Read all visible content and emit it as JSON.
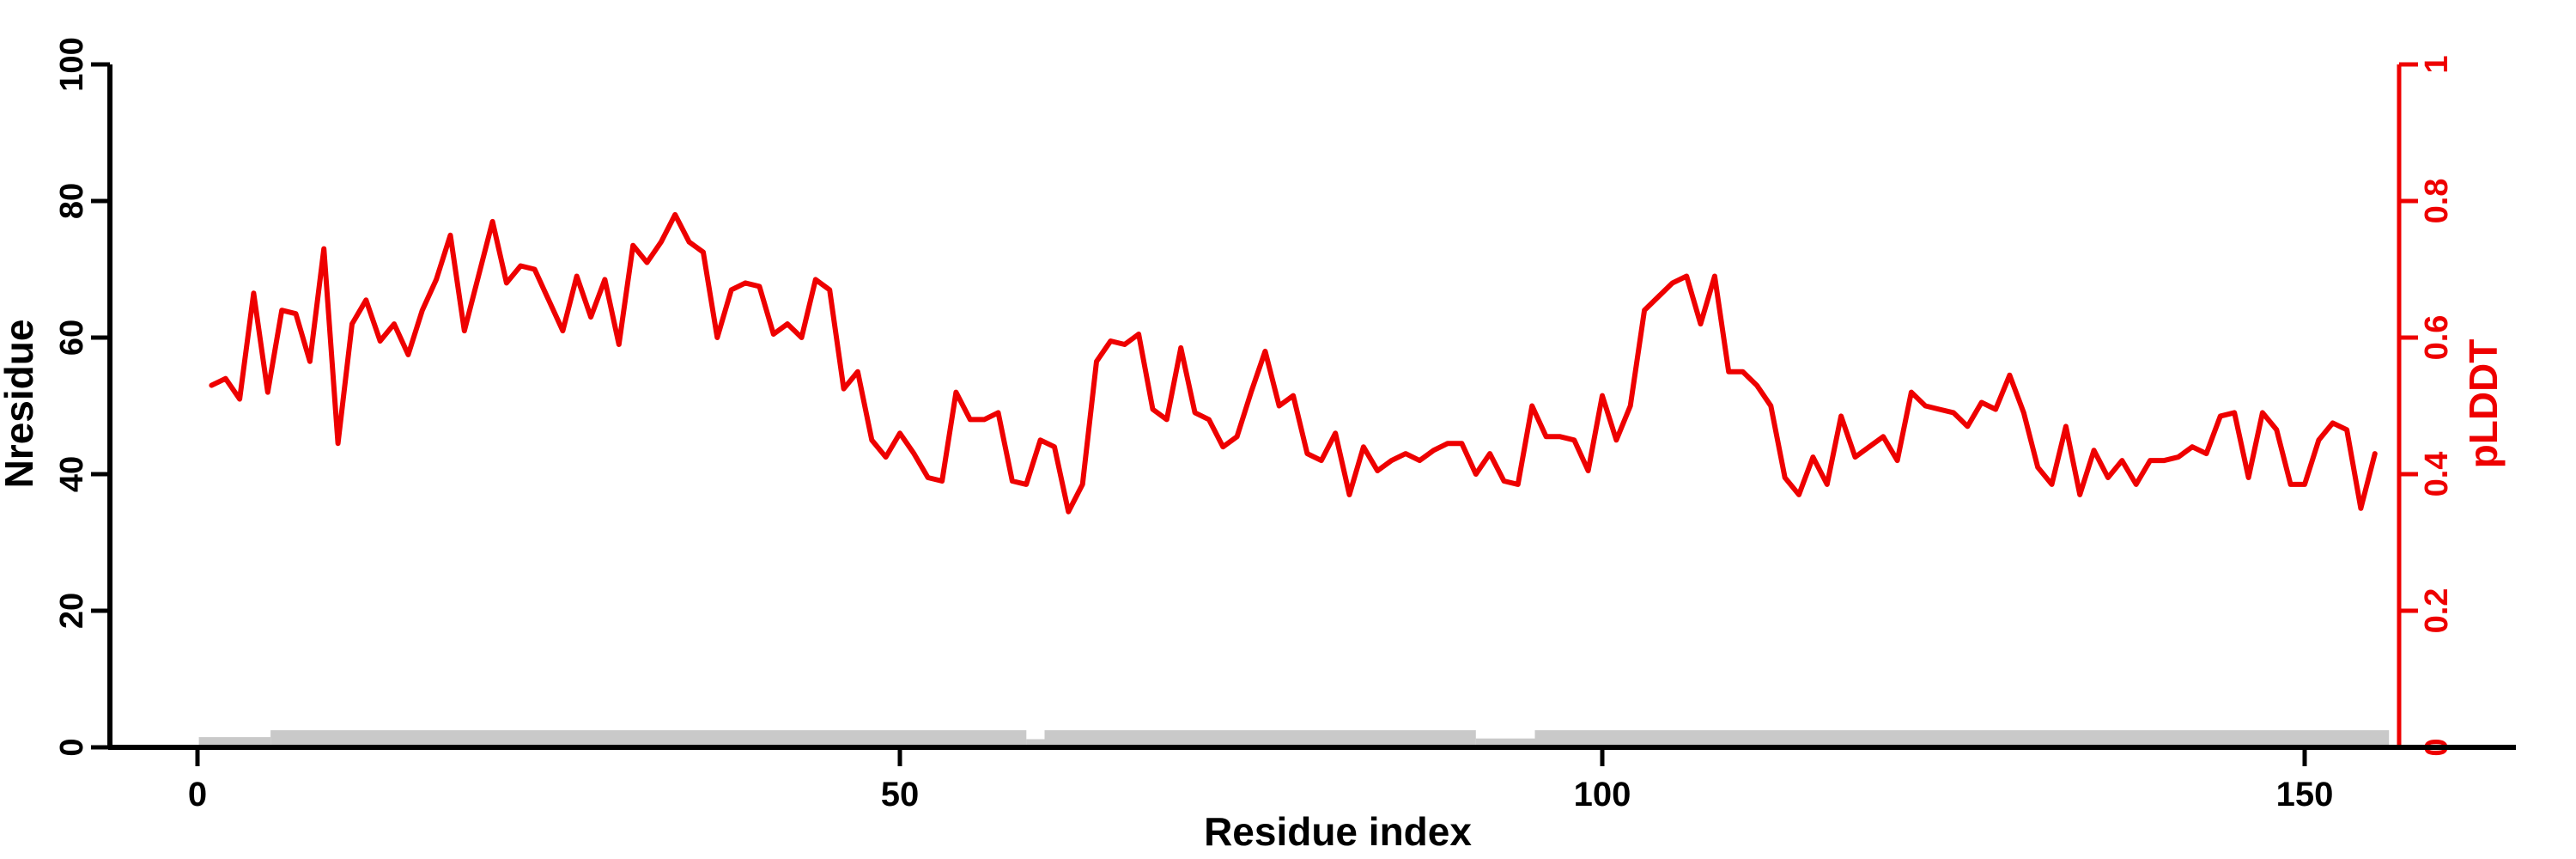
{
  "figure": {
    "background": "#ffffff",
    "axis_color": "#000000",
    "accent_color": "#ee0000",
    "band_color": "#c9c9c9"
  },
  "axes": {
    "left": {
      "title": "Nresidue",
      "tick_labels": [
        "0",
        "20",
        "40",
        "60",
        "80",
        "100"
      ],
      "tick_values": [
        0,
        20,
        40,
        60,
        80,
        100
      ],
      "range": [
        0,
        100
      ]
    },
    "right": {
      "title": "pLDDT",
      "tick_labels": [
        "0",
        "0.2",
        "0.4",
        "0.6",
        "0.8",
        "1"
      ],
      "tick_values": [
        0,
        0.2,
        0.4,
        0.6,
        0.8,
        1
      ],
      "range": [
        0,
        1
      ]
    },
    "bottom": {
      "title": "Residue index",
      "tick_labels": [
        "0",
        "50",
        "100",
        "150"
      ],
      "tick_values": [
        0,
        50,
        100,
        150
      ]
    }
  },
  "chart_data": {
    "type": "line",
    "title": "",
    "xlabel": "Residue index",
    "ylabel_left": "Nresidue",
    "ylabel_right": "pLDDT",
    "ylim_left": [
      0,
      100
    ],
    "ylim_right": [
      0,
      1
    ],
    "xlim": [
      0,
      160
    ],
    "grid": false,
    "legend": "none",
    "x_start": 1,
    "x_step": 1,
    "series": [
      {
        "name": "pLDDT",
        "axis": "right",
        "color": "#ee0000",
        "values": [
          0.53,
          0.54,
          0.51,
          0.665,
          0.52,
          0.64,
          0.635,
          0.565,
          0.73,
          0.445,
          0.62,
          0.655,
          0.595,
          0.62,
          0.575,
          0.64,
          0.685,
          0.75,
          0.61,
          0.69,
          0.77,
          0.68,
          0.705,
          0.7,
          0.655,
          0.61,
          0.69,
          0.63,
          0.685,
          0.59,
          0.735,
          0.71,
          0.74,
          0.78,
          0.74,
          0.725,
          0.6,
          0.67,
          0.68,
          0.675,
          0.605,
          0.62,
          0.6,
          0.685,
          0.67,
          0.525,
          0.55,
          0.45,
          0.425,
          0.46,
          0.43,
          0.395,
          0.39,
          0.52,
          0.48,
          0.48,
          0.49,
          0.39,
          0.385,
          0.45,
          0.44,
          0.345,
          0.385,
          0.565,
          0.595,
          0.59,
          0.605,
          0.495,
          0.48,
          0.585,
          0.49,
          0.48,
          0.44,
          0.455,
          0.52,
          0.58,
          0.5,
          0.515,
          0.43,
          0.42,
          0.46,
          0.37,
          0.44,
          0.405,
          0.42,
          0.43,
          0.42,
          0.435,
          0.445,
          0.445,
          0.4,
          0.43,
          0.39,
          0.385,
          0.5,
          0.455,
          0.455,
          0.45,
          0.405,
          0.515,
          0.45,
          0.5,
          0.64,
          0.66,
          0.68,
          0.69,
          0.62,
          0.69,
          0.55,
          0.55,
          0.53,
          0.5,
          0.395,
          0.37,
          0.425,
          0.385,
          0.485,
          0.425,
          0.44,
          0.455,
          0.42,
          0.52,
          0.5,
          0.495,
          0.49,
          0.47,
          0.505,
          0.495,
          0.545,
          0.49,
          0.41,
          0.385,
          0.47,
          0.37,
          0.435,
          0.395,
          0.42,
          0.385,
          0.42,
          0.42,
          0.425,
          0.44,
          0.43,
          0.485,
          0.49,
          0.395,
          0.49,
          0.465,
          0.385,
          0.385,
          0.45,
          0.475,
          0.465,
          0.35,
          0.43
        ]
      },
      {
        "name": "Nresidue-band",
        "type": "band-segments",
        "axis": "left",
        "color": "#c9c9c9",
        "segments": [
          [
            0.1,
            5.2,
            1.5
          ],
          [
            5.2,
            59.0,
            2.5
          ],
          [
            59.0,
            60.3,
            1.2
          ],
          [
            60.3,
            91.0,
            2.5
          ],
          [
            91.0,
            95.2,
            1.3
          ],
          [
            95.2,
            156.0,
            2.5
          ]
        ]
      }
    ]
  }
}
